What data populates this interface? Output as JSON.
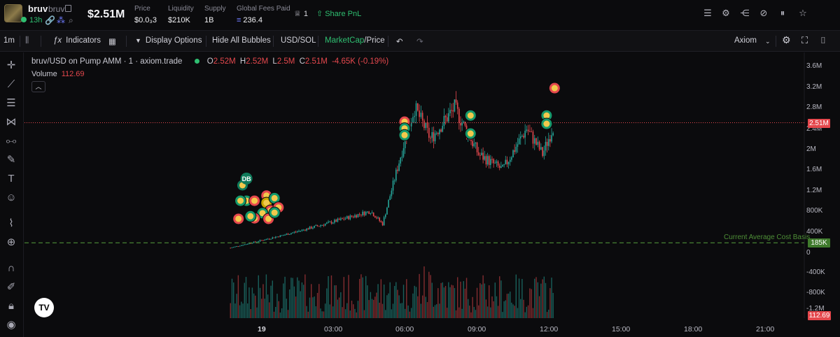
{
  "header": {
    "token_name": "bruv",
    "token_sub": "bruv",
    "age": "13h",
    "market_cap": "$2.51M",
    "stats": [
      {
        "label": "Price",
        "value": "$0.0₃3"
      },
      {
        "label": "Liquidity",
        "value": "$210K"
      },
      {
        "label": "Supply",
        "value": "1B"
      },
      {
        "label": "Global Fees Paid",
        "value": "236.4"
      }
    ],
    "holders_count": "1",
    "share_label": "Share PnL",
    "right_icons": [
      "list-icon",
      "gear-icon",
      "share-icon",
      "eye-off-icon",
      "pause-icon",
      "star-icon"
    ]
  },
  "toolbar": {
    "interval": "1m",
    "indicators": "Indicators",
    "display_options": "Display Options",
    "hide_bubbles": "Hide All Bubbles",
    "currency": "USD/SOL",
    "mode_active": "MarketCap",
    "mode_rest": "/Price",
    "layout_name": "Axiom"
  },
  "legend": {
    "symbol": "bruv/USD on Pump AMM · 1 · axiom.trade",
    "open_k": "O",
    "open_v": "2.52M",
    "high_k": "H",
    "high_v": "2.52M",
    "low_k": "L",
    "low_v": "2.5M",
    "close_k": "C",
    "close_v": "2.51M",
    "change": "-4.65K (-0.19%)",
    "volume_label": "Volume",
    "volume_value": "112.69"
  },
  "cost_basis_label": "Current Average Cost Basis",
  "price_tags": {
    "current": "2.51M",
    "cost": "185K",
    "volume": "112.69"
  },
  "colors": {
    "up": "#26a69a",
    "down": "#e5484d",
    "accent": "#2fbf71",
    "cost": "#4e8f37",
    "background": "#0b0b0d"
  },
  "chart_data": {
    "type": "candlestick",
    "y_axis_labels": [
      "3.6M",
      "3.2M",
      "2.8M",
      "2.4M",
      "2M",
      "1.6M",
      "1.2M",
      "800K",
      "400K",
      "0",
      "-400K",
      "-800K",
      "-1.2M"
    ],
    "x_axis_labels": [
      "19",
      "03:00",
      "06:00",
      "09:00",
      "12:00",
      "15:00",
      "18:00",
      "21:00"
    ],
    "current_market_cap": 2510000,
    "cost_basis": 185000,
    "approx_path": [
      {
        "time": "22:40",
        "mcap": 90000
      },
      {
        "time": "01:00",
        "mcap": 350000
      },
      {
        "time": "03:00",
        "mcap": 600000
      },
      {
        "time": "04:30",
        "mcap": 800000
      },
      {
        "time": "05:00",
        "mcap": 550000
      },
      {
        "time": "06:00",
        "mcap": 2300000
      },
      {
        "time": "06:20",
        "mcap": 2800000
      },
      {
        "time": "07:00",
        "mcap": 2200000
      },
      {
        "time": "08:00",
        "mcap": 2800000
      },
      {
        "time": "09:00",
        "mcap": 1900000
      },
      {
        "time": "10:00",
        "mcap": 1600000
      },
      {
        "time": "11:00",
        "mcap": 2400000
      },
      {
        "time": "11:40",
        "mcap": 1900000
      },
      {
        "time": "12:10",
        "mcap": 2510000
      }
    ],
    "grid": false
  }
}
